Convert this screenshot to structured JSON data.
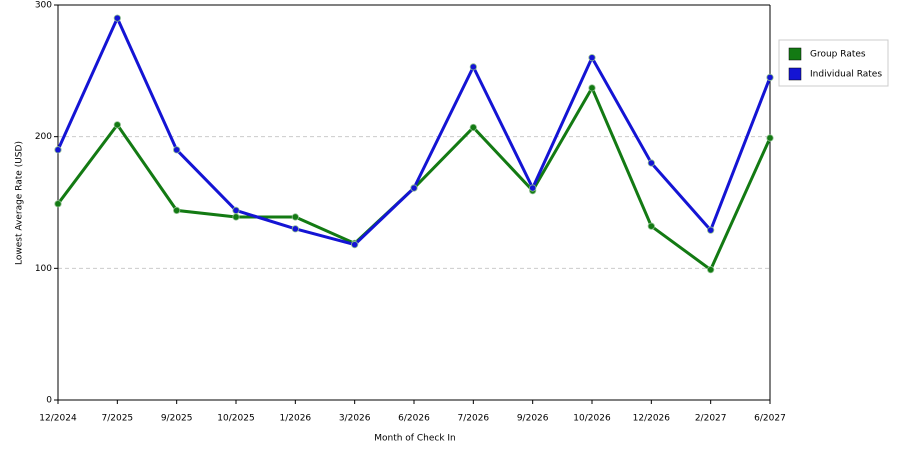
{
  "chart_data": {
    "type": "line",
    "x_label": "Month of Check In",
    "y_label": "Lowest Average Rate (USD)",
    "categories": [
      "12/2024",
      "7/2025",
      "9/2025",
      "10/2025",
      "1/2026",
      "3/2026",
      "6/2026",
      "7/2026",
      "9/2026",
      "10/2026",
      "12/2026",
      "2/2027",
      "6/2027"
    ],
    "series": [
      {
        "name": "Group Rates",
        "color": "#137a13",
        "values": [
          149,
          209,
          144,
          139,
          139,
          119,
          161,
          207,
          159,
          237,
          132,
          99,
          199
        ]
      },
      {
        "name": "Individual Rates",
        "color": "#1414d4",
        "values": [
          190,
          290,
          190,
          144,
          130,
          118,
          161,
          253,
          161,
          260,
          180,
          129,
          245
        ]
      }
    ],
    "ylim": [
      0,
      300
    ],
    "yticks": [
      0,
      100,
      200,
      300
    ],
    "grid": true
  }
}
